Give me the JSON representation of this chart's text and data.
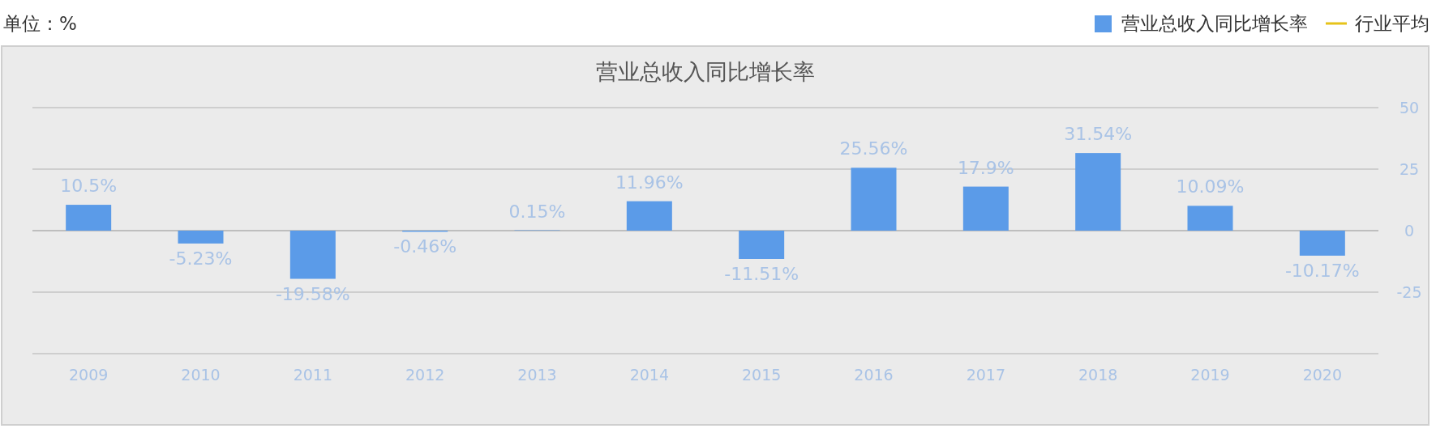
{
  "chart_data": {
    "type": "bar",
    "title": "营业总收入同比增长率",
    "categories": [
      "2009",
      "2010",
      "2011",
      "2012",
      "2013",
      "2014",
      "2015",
      "2016",
      "2017",
      "2018",
      "2019",
      "2020"
    ],
    "series": [
      {
        "name": "营业总收入同比增长率",
        "color": "#5b9be8",
        "values": [
          10.5,
          -5.23,
          -19.58,
          -0.46,
          0.15,
          11.96,
          -11.51,
          25.56,
          17.9,
          31.54,
          10.09,
          -10.17
        ],
        "value_labels": [
          "10.5%",
          "-5.23%",
          "-19.58%",
          "-0.46%",
          "0.15%",
          "11.96%",
          "-11.51%",
          "25.56%",
          "17.9%",
          "31.54%",
          "10.09%",
          "-10.17%"
        ]
      },
      {
        "name": "行业平均",
        "type": "line",
        "color": "#e6c31a",
        "values": [
          null,
          null,
          null,
          null,
          null,
          null,
          null,
          null,
          null,
          null,
          null,
          null
        ]
      }
    ],
    "ylim": [
      -50,
      50
    ],
    "yticks": [
      {
        "value": -50,
        "label": null
      },
      -25,
      0,
      25,
      50
    ],
    "grid": "y",
    "legend": "top right",
    "annotations": [
      "单位：%"
    ]
  }
}
